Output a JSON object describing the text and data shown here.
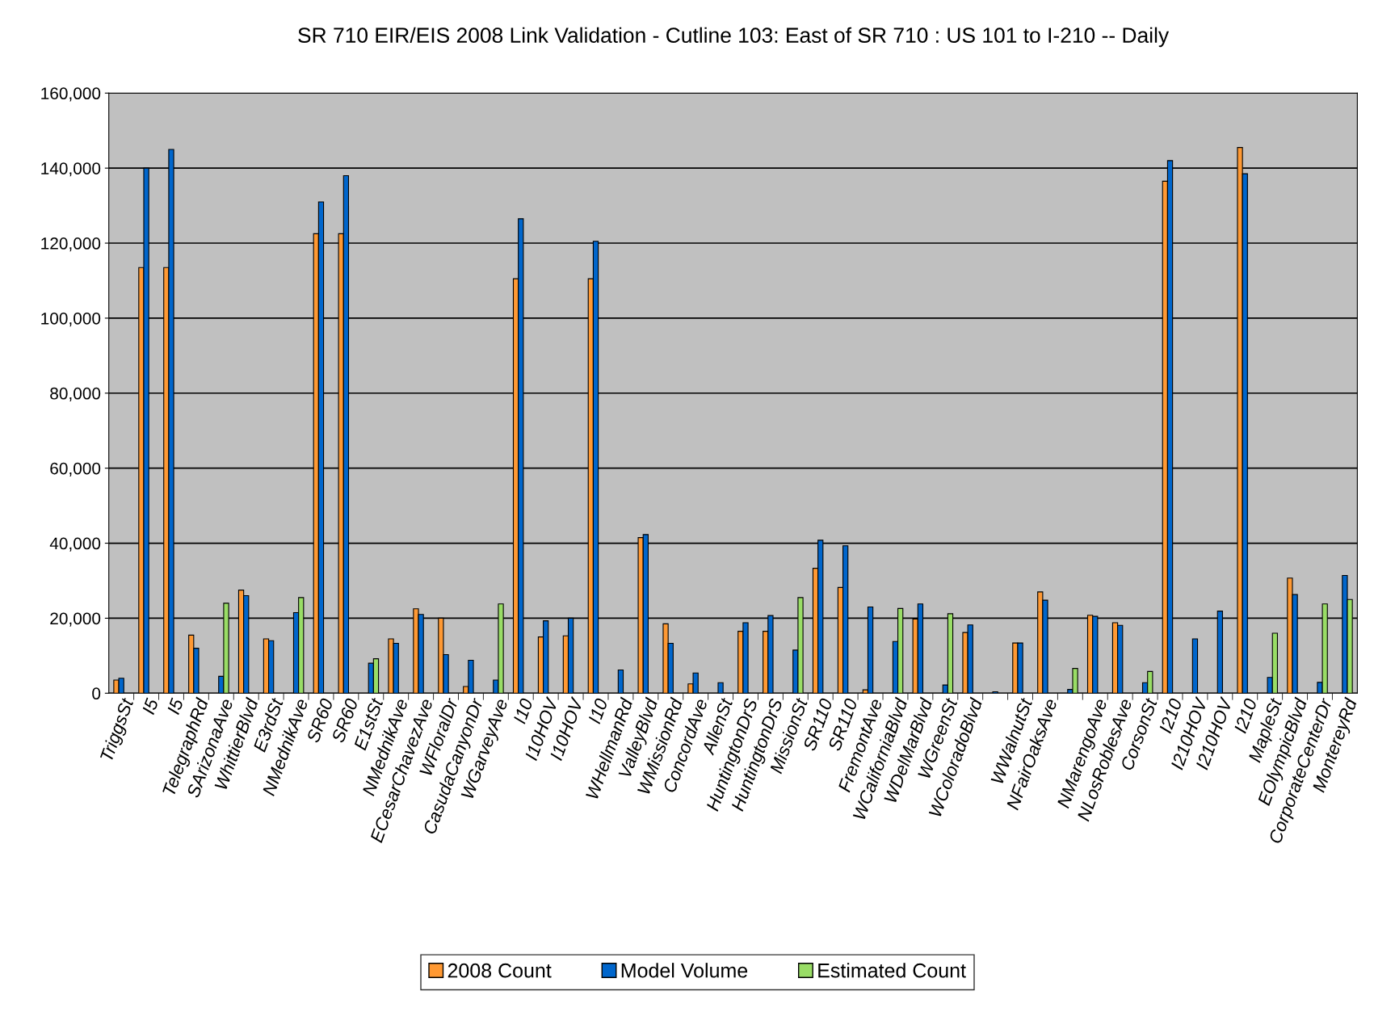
{
  "chart_data": {
    "type": "bar",
    "title": "SR 710 EIR/EIS 2008 Link Validation - Cutline 103: East of SR 710 : US 101 to I-210 -- Daily",
    "categories": [
      "TriggsSt",
      "I5",
      "I5",
      "TelegraphRd",
      "SArizonaAve",
      "WhittierBlvd",
      "E3rdSt",
      "NMednikAve",
      "SR60",
      "SR60",
      "E1stSt",
      "NMednikAve",
      "ECesarChavezAve",
      "WFloralDr",
      "CasudaCanyonDr",
      "WGarveyAve",
      "I10",
      "I10HOV",
      "I10HOV",
      "I10",
      "WHellmanRd",
      "ValleyBlvd",
      "WMissionRd",
      "ConcordAve",
      "AllenSt",
      "HuntingtonDrS",
      "HuntingtonDrS",
      "MissionSt",
      "SR110",
      "SR110",
      "FremontAve",
      "WCaliforniaBlvd",
      "WDelMarBlvd",
      "WGreenSt",
      "WColoradoBlvd",
      null,
      "WWalnutSt",
      "NFairOaksAve",
      null,
      "NMarengoAve",
      "NLosRoblesAve",
      "CorsonSt",
      "I210",
      "I210HOV",
      "I210HOV",
      "I210",
      "MapleSt",
      "EOlympicBlvd",
      "CorporateCenterDr",
      "MontereyRd"
    ],
    "series": [
      {
        "name": "2008 Count",
        "color": "#ff9933",
        "values": [
          3500,
          113500,
          113500,
          15500,
          null,
          27500,
          14500,
          null,
          122500,
          122500,
          null,
          14500,
          22500,
          20000,
          1800,
          null,
          110500,
          15000,
          15300,
          110500,
          null,
          41500,
          18500,
          2500,
          null,
          16500,
          16500,
          null,
          33300,
          28200,
          900,
          null,
          19800,
          null,
          16200,
          null,
          13400,
          27000,
          null,
          20800,
          18800,
          null,
          136500,
          null,
          null,
          145500,
          null,
          30700,
          null,
          null
        ]
      },
      {
        "name": "Model Volume",
        "color": "#0066cc",
        "values": [
          4000,
          140000,
          145000,
          12000,
          4500,
          26000,
          14000,
          21500,
          131000,
          138000,
          8000,
          13300,
          21000,
          10300,
          8800,
          3500,
          126500,
          19300,
          20000,
          120500,
          6200,
          42300,
          13300,
          5400,
          2800,
          18800,
          20700,
          11500,
          40800,
          39300,
          23000,
          13800,
          23800,
          2200,
          18200,
          400,
          13400,
          24800,
          1000,
          20500,
          18100,
          2800,
          142000,
          14500,
          21900,
          138500,
          4200,
          26300,
          2900,
          31400
        ]
      },
      {
        "name": "Estimated Count",
        "color": "#99dd66",
        "values": [
          null,
          null,
          null,
          null,
          24000,
          null,
          null,
          25500,
          null,
          null,
          9200,
          null,
          null,
          null,
          null,
          23800,
          null,
          null,
          null,
          null,
          null,
          null,
          null,
          null,
          null,
          null,
          null,
          25500,
          null,
          null,
          null,
          22600,
          null,
          21200,
          null,
          null,
          null,
          null,
          6600,
          null,
          null,
          5800,
          null,
          null,
          null,
          null,
          16000,
          null,
          23800,
          25000
        ]
      }
    ],
    "ylim": [
      0,
      160000
    ],
    "yticks": [
      {
        "value": 0,
        "label": "0"
      },
      {
        "value": 20000,
        "label": "20,000"
      },
      {
        "value": 40000,
        "label": "40,000"
      },
      {
        "value": 60000,
        "label": "60,000"
      },
      {
        "value": 80000,
        "label": "80,000"
      },
      {
        "value": 100000,
        "label": "100,000"
      },
      {
        "value": 120000,
        "label": "120,000"
      },
      {
        "value": 140000,
        "label": "140,000"
      },
      {
        "value": 160000,
        "label": "160,000"
      }
    ],
    "grid": "y",
    "legend": "bottom"
  }
}
